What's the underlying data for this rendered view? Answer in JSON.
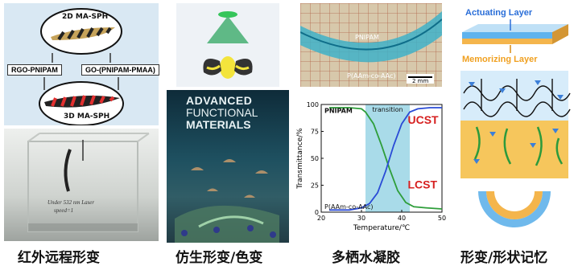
{
  "panel1": {
    "label_2d": "2D MA-SPH",
    "label_rgo": "RGO-PNIPAM",
    "label_go": "GO-(PNIPAM-PMAA)",
    "label_3d": "3D MA-SPH",
    "photo_caption_line1": "Under 532 nm Laser",
    "photo_caption_line2": "speed=1",
    "caption": "红外远程形变"
  },
  "panel2": {
    "journal_line1": "ADVANCED",
    "journal_line2": "FUNCTIONAL",
    "journal_line3": "MATERIALS",
    "caption": "仿生形变/色变"
  },
  "panel3": {
    "label_pnipam": "PNIPAM",
    "label_paam": "P(AAm-co-AAc)",
    "scale": "2 mm",
    "caption": "多栖水凝胶"
  },
  "chart_data": {
    "type": "line",
    "xlabel": "Temperature/℃",
    "ylabel": "Transmittance/%",
    "xlim": [
      20,
      50
    ],
    "ylim": [
      0,
      100
    ],
    "xticks": [
      "20",
      "30",
      "40",
      "50"
    ],
    "yticks": [
      "0",
      "25",
      "50",
      "75",
      "100"
    ],
    "transition_label": "transition",
    "transition_range": [
      31,
      42
    ],
    "series": [
      {
        "name": "PNIPAM",
        "color": "#2e9e3a",
        "tag": "LCST",
        "tag_color": "#d62020",
        "x": [
          22,
          27,
          30,
          31,
          33,
          35,
          37,
          39,
          41,
          43,
          46,
          50
        ],
        "y": [
          97,
          97,
          96,
          93,
          82,
          62,
          40,
          20,
          9,
          5,
          4,
          3
        ]
      },
      {
        "name": "P(AAm-co-AAc)",
        "color": "#2a4bd6",
        "tag": "UCST",
        "tag_color": "#d62020",
        "x": [
          22,
          27,
          30,
          32,
          34,
          36,
          38,
          40,
          42,
          44,
          47,
          50
        ],
        "y": [
          2,
          2,
          4,
          8,
          18,
          38,
          62,
          82,
          93,
          96,
          97,
          97
        ]
      }
    ]
  },
  "panel4": {
    "actuating": "Actuating Layer",
    "memorizing": "Memorizing Layer",
    "caption": "形变/形状记忆"
  }
}
